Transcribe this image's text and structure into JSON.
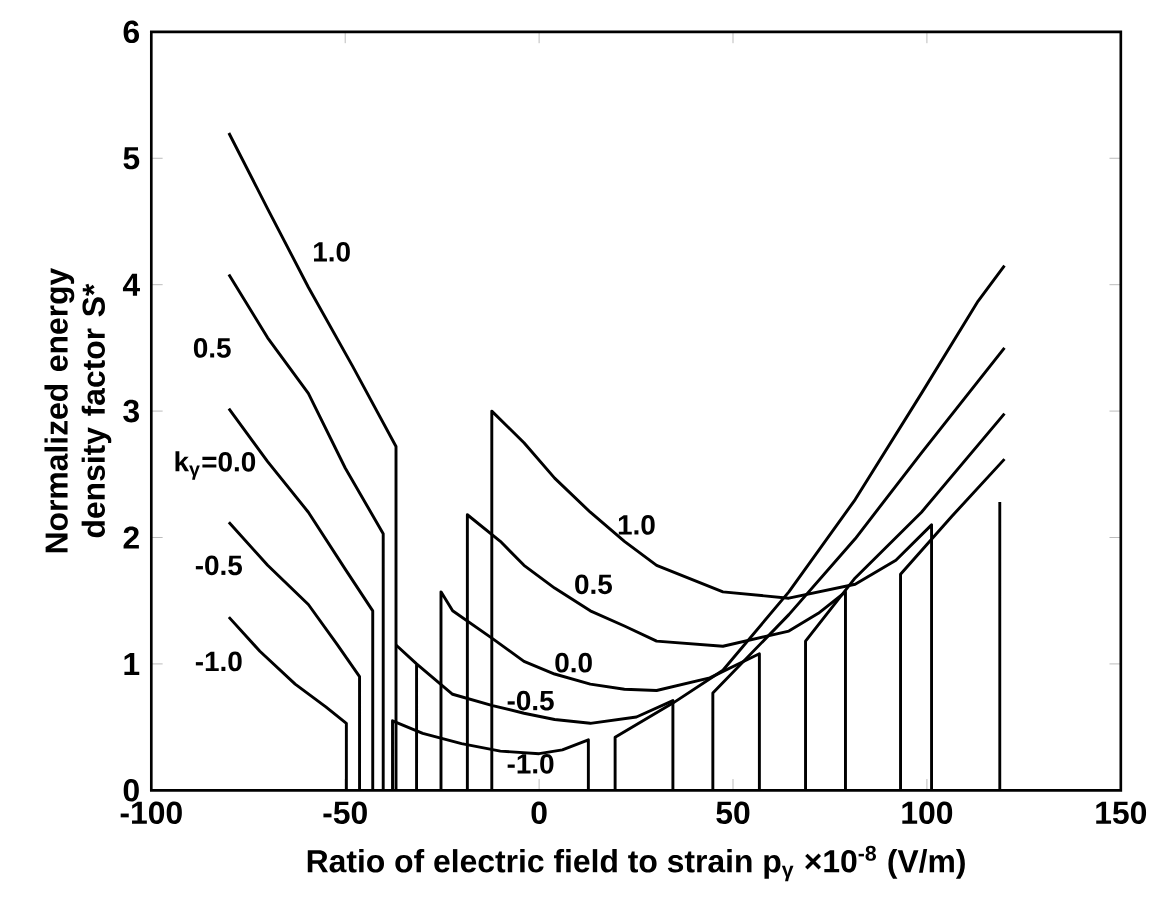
{
  "chart_data": {
    "type": "line",
    "xlabel": "Ratio of electric field to strain p$_{γ}$ ×10$^{-8}$ (V/m)",
    "ylabel": "Normalized energy density factor S*",
    "xlim": [
      -100,
      150
    ],
    "ylim": [
      0,
      6
    ],
    "xticks": [
      -100,
      -50,
      0,
      50,
      100,
      150
    ],
    "yticks": [
      0,
      1,
      2,
      3,
      4,
      5,
      6
    ],
    "grid": false,
    "marker": "none",
    "line_style": "solid",
    "series": [
      {
        "color": "#000000",
        "x": [
          -80,
          -70,
          -59.5,
          -48,
          -36.9,
          -36.9,
          null,
          -12.2,
          -12.2,
          -3.9,
          4,
          13.2,
          22,
          30.3,
          47.4,
          64.4,
          81.5,
          92,
          101.2,
          101.2,
          null,
          118.8,
          118.8
        ],
        "values": [
          5.2,
          4.6,
          3.98,
          3.35,
          2.72,
          0,
          null,
          0,
          3.0,
          2.75,
          2.47,
          2.2,
          1.97,
          1.78,
          1.57,
          1.52,
          1.63,
          1.82,
          2.1,
          0,
          null,
          0,
          2.28
        ]
      },
      {
        "color": "#000000",
        "x": [
          -80,
          -70,
          -59.5,
          -50,
          -40.2,
          -40.2,
          null,
          -18.5,
          -18.5,
          -10,
          -3.9,
          4,
          13.2,
          22,
          30.3,
          47.4,
          64.4,
          72,
          79,
          79,
          null,
          93.2,
          93.2,
          106.5,
          120
        ],
        "values": [
          4.08,
          3.58,
          3.14,
          2.55,
          2.03,
          0,
          null,
          0,
          2.18,
          1.97,
          1.78,
          1.6,
          1.42,
          1.3,
          1.18,
          1.14,
          1.26,
          1.4,
          1.57,
          0,
          null,
          0,
          1.71,
          2.17,
          2.62
        ]
      },
      {
        "color": "#000000",
        "x": [
          -80,
          -70,
          -59.5,
          -50,
          -42.9,
          -42.9,
          null,
          -25.3,
          -25.3,
          -22.3,
          -12,
          -3.9,
          4,
          13.2,
          22,
          30.3,
          44,
          56.8,
          56.8,
          null,
          68.7,
          68.7,
          81.5,
          98.6,
          120
        ],
        "values": [
          3.02,
          2.6,
          2.2,
          1.75,
          1.42,
          0,
          null,
          0,
          1.57,
          1.42,
          1.2,
          1.02,
          0.92,
          0.84,
          0.8,
          0.79,
          0.89,
          1.08,
          0,
          null,
          0,
          1.18,
          1.68,
          2.2,
          2.98
        ]
      },
      {
        "color": "#000000",
        "x": [
          -80,
          -70,
          -59.5,
          -52,
          -46.3,
          -46.3,
          null,
          -36.9,
          -31.6,
          null,
          -31.6,
          -31.6,
          -22.3,
          -12,
          -3.9,
          4,
          13.2,
          25.1,
          34.5,
          34.5,
          null,
          44.8,
          44.8,
          64.4,
          81.5,
          98.6,
          120
        ],
        "values": [
          2.12,
          1.78,
          1.47,
          1.15,
          0.9,
          0,
          null,
          1.15,
          1.0,
          null,
          0,
          1.0,
          0.76,
          0.67,
          0.61,
          0.56,
          0.53,
          0.58,
          0.71,
          0,
          null,
          0,
          0.77,
          1.39,
          1.99,
          2.67,
          3.5
        ]
      },
      {
        "color": "#000000",
        "x": [
          -80,
          -72,
          -62.9,
          -55,
          -49.7,
          -49.7,
          null,
          -37.8,
          -37.8,
          -30,
          -20,
          -10,
          0,
          6,
          12.7,
          12.7,
          null,
          19.6,
          19.6,
          34.5,
          47.4,
          64.4,
          81.5,
          98.6,
          113.2,
          120
        ],
        "values": [
          1.37,
          1.1,
          0.84,
          0.66,
          0.53,
          0,
          null,
          0,
          0.55,
          0.45,
          0.37,
          0.31,
          0.29,
          0.32,
          0.4,
          0,
          null,
          0,
          0.42,
          0.69,
          0.95,
          1.57,
          2.3,
          3.14,
          3.87,
          4.15
        ]
      }
    ],
    "annotations": [
      "1.0",
      "0.5",
      "k$_{γ}$=0.0",
      "-0.5",
      "-1.0",
      "1.0",
      "0.5",
      "0.0",
      "-0.5",
      "-1.0"
    ]
  }
}
